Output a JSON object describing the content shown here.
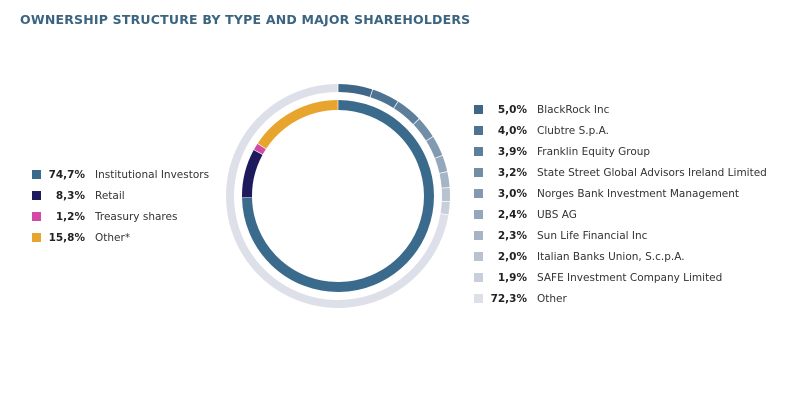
{
  "title": "OWNERSHIP STRUCTURE BY TYPE AND MAJOR SHAREHOLDERS",
  "chart_data": [
    {
      "type": "pie",
      "variant": "donut-inner-ring",
      "legend_position": "left",
      "series": [
        {
          "label": "Institutional Investors",
          "value": 74.7,
          "value_text": "74,7%",
          "color": "#3a6a8c"
        },
        {
          "label": "Retail",
          "value": 8.3,
          "value_text": "8,3%",
          "color": "#1e1a5e"
        },
        {
          "label": "Treasury shares",
          "value": 1.2,
          "value_text": "1,2%",
          "color": "#d24aa6"
        },
        {
          "label": "Other*",
          "value": 15.8,
          "value_text": "15,8%",
          "color": "#e8a52e"
        }
      ]
    },
    {
      "type": "pie",
      "variant": "donut-outer-ring",
      "legend_position": "right",
      "series": [
        {
          "label": "BlackRock Inc",
          "value": 5.0,
          "value_text": "5,0%",
          "color": "#3f6787"
        },
        {
          "label": "Clubtre S.p.A.",
          "value": 4.0,
          "value_text": "4,0%",
          "color": "#4e7392"
        },
        {
          "label": "Franklin Equity Group",
          "value": 3.9,
          "value_text": "3,9%",
          "color": "#5e7f9c"
        },
        {
          "label": "State Street Global Advisors Ireland Limited",
          "value": 3.2,
          "value_text": "3,2%",
          "color": "#718ea7"
        },
        {
          "label": "Norges Bank Investment Management",
          "value": 3.0,
          "value_text": "3,0%",
          "color": "#8399b0"
        },
        {
          "label": "UBS AG",
          "value": 2.4,
          "value_text": "2,4%",
          "color": "#95a7bc"
        },
        {
          "label": "Sun Life Financial Inc",
          "value": 2.3,
          "value_text": "2,3%",
          "color": "#a7b4c6"
        },
        {
          "label": "Italian Banks Union, S.c.p.A.",
          "value": 2.0,
          "value_text": "2,0%",
          "color": "#b8c2d1"
        },
        {
          "label": "SAFE Investment Company Limited",
          "value": 1.9,
          "value_text": "1,9%",
          "color": "#c9cfda"
        },
        {
          "label": "Other",
          "value": 72.3,
          "value_text": "72,3%",
          "color": "#dde0e8"
        }
      ]
    }
  ]
}
